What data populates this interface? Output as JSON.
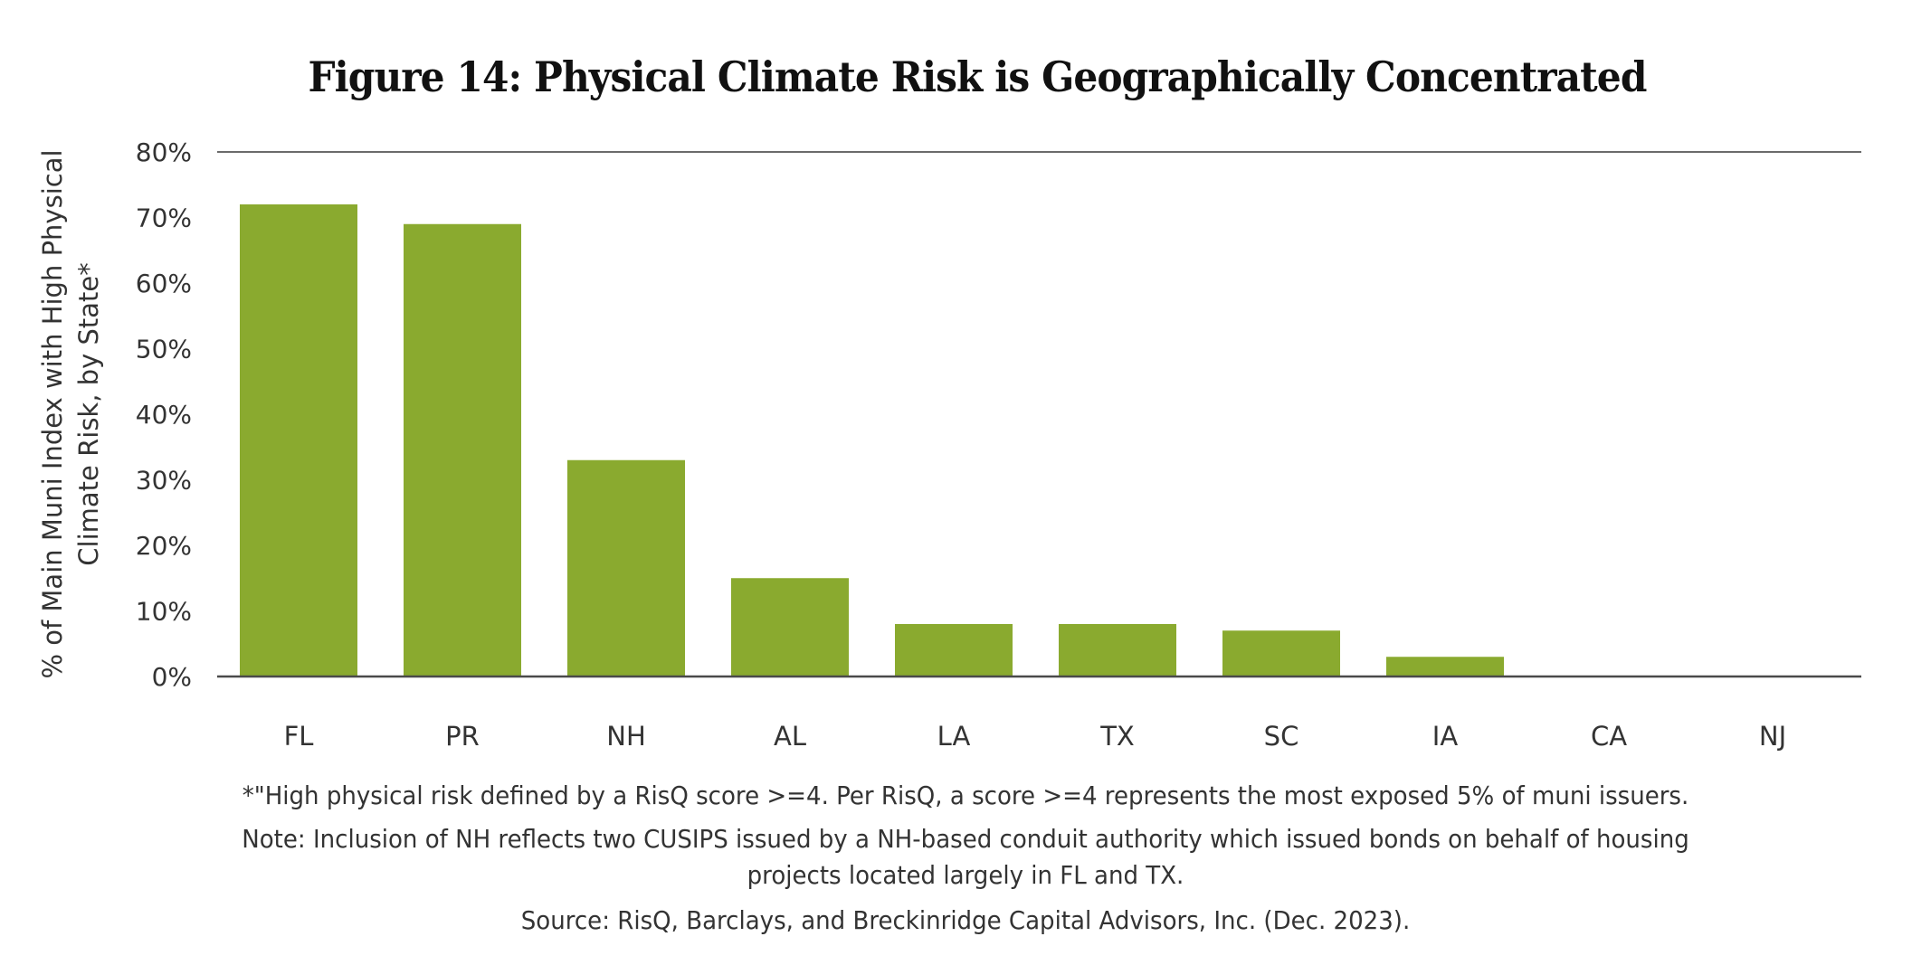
{
  "chart_data": {
    "type": "bar",
    "title": "Figure 14: Physical Climate Risk is Geographically Concentrated",
    "xlabel": "",
    "ylabel": "% of Main Muni Index with High Physical Climate Risk, by State*",
    "ylabel_lines": [
      "% of Main Muni Index with High Physical",
      "Climate Risk, by State*"
    ],
    "categories": [
      "FL",
      "PR",
      "NH",
      "AL",
      "LA",
      "TX",
      "SC",
      "IA",
      "CA",
      "NJ"
    ],
    "values": [
      72,
      69,
      33,
      15,
      8,
      8,
      7,
      3,
      0.1,
      0.1
    ],
    "ylim": [
      0,
      80
    ],
    "yticks": [
      0,
      10,
      20,
      30,
      40,
      50,
      60,
      70,
      80
    ],
    "ytick_labels": [
      "0%",
      "10%",
      "20%",
      "30%",
      "40%",
      "50%",
      "60%",
      "70%",
      "80%"
    ],
    "grid": false,
    "legend": "none",
    "bar_color": "#8AAA2F",
    "axis_color": "#4A4A4A"
  },
  "footnotes": {
    "definition": "*\"High physical risk defined by a RisQ score >=4. Per RisQ, a score >=4 represents the most exposed 5% of muni issuers.",
    "note": "Note: Inclusion of NH reflects two CUSIPS issued by a NH-based conduit authority which issued bonds on behalf of housing projects located largely in FL and TX.",
    "source": "Source: RisQ, Barclays, and Breckinridge Capital Advisors, Inc. (Dec. 2023)."
  }
}
